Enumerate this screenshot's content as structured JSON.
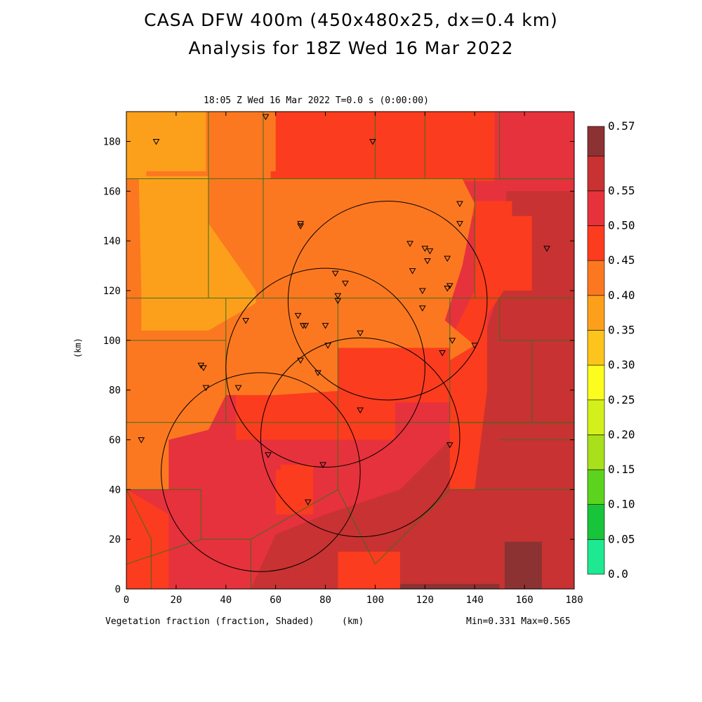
{
  "title_line1": "CASA DFW 400m (450x480x25, dx=0.4 km)",
  "title_line2": "Analysis for 18Z Wed 16 Mar 2022",
  "subtitle": "18:05 Z Wed 16 Mar 2022    T=0.0 s (0:00:00)",
  "field_label": "Vegetation fraction (fraction, Shaded)",
  "unit_label": "(km)",
  "y_unit_label": "(km)",
  "minmax": "Min=0.331 Max=0.565",
  "x_ticks": [
    "0",
    "20",
    "40",
    "60",
    "80",
    "100",
    "120",
    "140",
    "160",
    "180"
  ],
  "y_ticks": [
    "0",
    "20",
    "40",
    "60",
    "80",
    "100",
    "120",
    "140",
    "160",
    "180"
  ],
  "colorbar": {
    "labels": [
      "0.0",
      "0.05",
      "0.10",
      "0.15",
      "0.20",
      "0.25",
      "0.30",
      "0.35",
      "0.40",
      "0.45",
      "0.50",
      "0.55",
      "0.57"
    ],
    "colors": [
      "#1ee890",
      "#18c43a",
      "#5cd41e",
      "#a8e01c",
      "#d4f01c",
      "#fcfc1e",
      "#fcc41c",
      "#fca01c",
      "#fc7820",
      "#fc3c1e",
      "#e6323c",
      "#c83232",
      "#8c3232"
    ]
  },
  "field_colors": {
    "c30": "#fca01c",
    "c35": "#fc7820",
    "c40": "#fc3c1e",
    "c45": "#e6323c",
    "c50": "#c83232",
    "c55": "#8c3232"
  },
  "stations": [
    [
      12,
      180
    ],
    [
      56,
      190
    ],
    [
      99,
      180
    ],
    [
      70,
      147
    ],
    [
      70,
      146
    ],
    [
      134,
      155
    ],
    [
      134,
      147
    ],
    [
      114,
      139
    ],
    [
      120,
      137
    ],
    [
      122,
      136
    ],
    [
      121,
      132
    ],
    [
      129,
      133
    ],
    [
      115,
      128
    ],
    [
      84,
      127
    ],
    [
      88,
      123
    ],
    [
      119,
      120
    ],
    [
      85,
      118
    ],
    [
      85,
      116
    ],
    [
      130,
      122
    ],
    [
      129,
      121
    ],
    [
      119,
      113
    ],
    [
      69,
      110
    ],
    [
      71,
      106
    ],
    [
      72,
      106
    ],
    [
      80,
      106
    ],
    [
      94,
      103
    ],
    [
      48,
      108
    ],
    [
      131,
      100
    ],
    [
      140,
      98
    ],
    [
      81,
      98
    ],
    [
      127,
      95
    ],
    [
      70,
      92
    ],
    [
      30,
      90
    ],
    [
      31,
      89
    ],
    [
      77,
      87
    ],
    [
      32,
      81
    ],
    [
      45,
      81
    ],
    [
      94,
      72
    ],
    [
      6,
      60
    ],
    [
      130,
      58
    ],
    [
      57,
      54
    ],
    [
      79,
      50
    ],
    [
      73,
      35
    ],
    [
      169,
      137
    ]
  ],
  "radar_circles": [
    [
      54,
      47,
      40
    ],
    [
      80,
      89,
      40
    ],
    [
      105,
      116,
      40
    ],
    [
      94,
      61,
      40
    ]
  ]
}
